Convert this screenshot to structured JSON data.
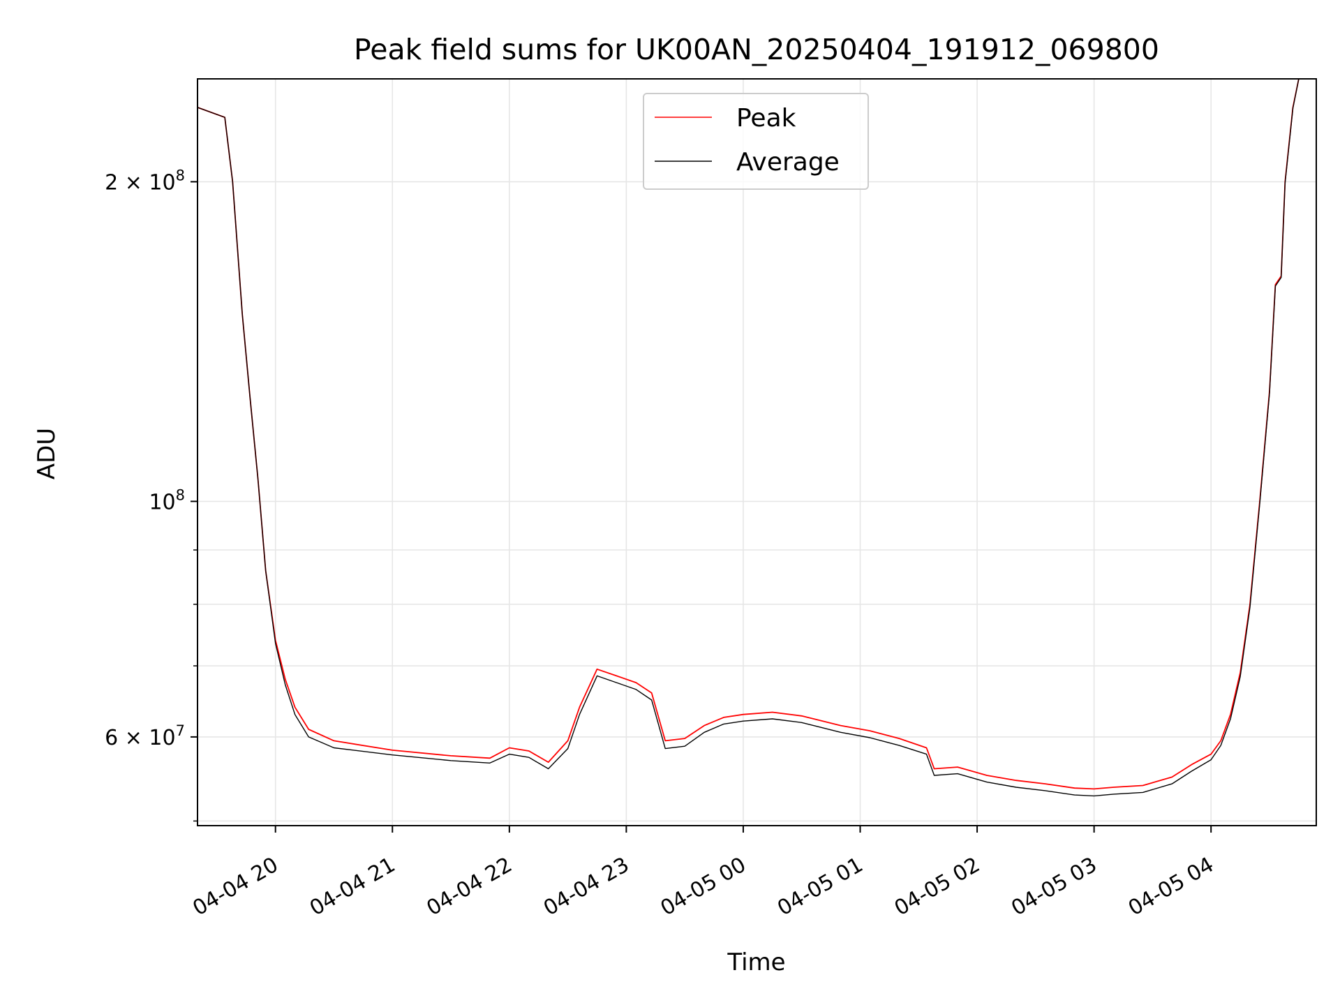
{
  "chart_data": {
    "type": "line",
    "title": "Peak field sums for UK00AN_20250404_191912_069800",
    "xlabel": "Time",
    "ylabel": "ADU",
    "y_scale": "log",
    "ylim": [
      49500000,
      250000000
    ],
    "xlim": [
      "2025-04-04 19:20",
      "2025-04-05 04:54"
    ],
    "grid": true,
    "legend_position": "upper center",
    "x_ticks": [
      {
        "t": "2025-04-04 20:00",
        "label": "04-04 20"
      },
      {
        "t": "2025-04-04 21:00",
        "label": "04-04 21"
      },
      {
        "t": "2025-04-04 22:00",
        "label": "04-04 22"
      },
      {
        "t": "2025-04-04 23:00",
        "label": "04-04 23"
      },
      {
        "t": "2025-04-05 00:00",
        "label": "04-05 00"
      },
      {
        "t": "2025-04-05 01:00",
        "label": "04-05 01"
      },
      {
        "t": "2025-04-05 02:00",
        "label": "04-05 02"
      },
      {
        "t": "2025-04-05 03:00",
        "label": "04-05 03"
      },
      {
        "t": "2025-04-05 04:00",
        "label": "04-05 04"
      }
    ],
    "y_major_ticks": [
      {
        "value": 60000000,
        "mant": "6",
        "exp": "7"
      },
      {
        "value": 100000000,
        "mant": "",
        "exp": "8"
      },
      {
        "value": 200000000,
        "mant": "2",
        "exp": "8"
      }
    ],
    "y_minor_ticks": [
      50000000,
      70000000,
      80000000,
      90000000
    ],
    "series": [
      {
        "name": "Peak",
        "color": "#ff0000",
        "points": [
          [
            "2025-04-04 19:20",
            235000000
          ],
          [
            "2025-04-04 19:34",
            230000000
          ],
          [
            "2025-04-04 19:38",
            200000000
          ],
          [
            "2025-04-04 19:43",
            150000000
          ],
          [
            "2025-04-04 19:47",
            125000000
          ],
          [
            "2025-04-04 19:51",
            105000000
          ],
          [
            "2025-04-04 19:55",
            86000000
          ],
          [
            "2025-04-04 20:00",
            74000000
          ],
          [
            "2025-04-04 20:05",
            68000000
          ],
          [
            "2025-04-04 20:10",
            64000000
          ],
          [
            "2025-04-04 20:17",
            61000000
          ],
          [
            "2025-04-04 20:30",
            59500000
          ],
          [
            "2025-04-04 21:00",
            58300000
          ],
          [
            "2025-04-04 21:30",
            57600000
          ],
          [
            "2025-04-04 21:50",
            57300000
          ],
          [
            "2025-04-04 22:00",
            58600000
          ],
          [
            "2025-04-04 22:10",
            58200000
          ],
          [
            "2025-04-04 22:20",
            56800000
          ],
          [
            "2025-04-04 22:30",
            59500000
          ],
          [
            "2025-04-04 22:36",
            64000000
          ],
          [
            "2025-04-04 22:45",
            69500000
          ],
          [
            "2025-04-04 22:55",
            68500000
          ],
          [
            "2025-04-04 23:05",
            67500000
          ],
          [
            "2025-04-04 23:13",
            66000000
          ],
          [
            "2025-04-04 23:20",
            59500000
          ],
          [
            "2025-04-04 23:30",
            59800000
          ],
          [
            "2025-04-04 23:40",
            61500000
          ],
          [
            "2025-04-04 23:50",
            62600000
          ],
          [
            "2025-04-05 00:00",
            63000000
          ],
          [
            "2025-04-05 00:15",
            63300000
          ],
          [
            "2025-04-05 00:30",
            62800000
          ],
          [
            "2025-04-05 00:50",
            61500000
          ],
          [
            "2025-04-05 01:05",
            60800000
          ],
          [
            "2025-04-05 01:20",
            59800000
          ],
          [
            "2025-04-05 01:34",
            58600000
          ],
          [
            "2025-04-05 01:38",
            56000000
          ],
          [
            "2025-04-05 01:50",
            56200000
          ],
          [
            "2025-04-05 02:05",
            55200000
          ],
          [
            "2025-04-05 02:20",
            54600000
          ],
          [
            "2025-04-05 02:35",
            54200000
          ],
          [
            "2025-04-05 02:50",
            53700000
          ],
          [
            "2025-04-05 03:00",
            53600000
          ],
          [
            "2025-04-05 03:10",
            53800000
          ],
          [
            "2025-04-05 03:25",
            54000000
          ],
          [
            "2025-04-05 03:40",
            55000000
          ],
          [
            "2025-04-05 03:50",
            56500000
          ],
          [
            "2025-04-05 04:00",
            57800000
          ],
          [
            "2025-04-05 04:05",
            59500000
          ],
          [
            "2025-04-05 04:10",
            63000000
          ],
          [
            "2025-04-05 04:15",
            69000000
          ],
          [
            "2025-04-05 04:20",
            80000000
          ],
          [
            "2025-04-05 04:25",
            100000000
          ],
          [
            "2025-04-05 04:30",
            127000000
          ],
          [
            "2025-04-05 04:33",
            160000000
          ],
          [
            "2025-04-05 04:36",
            163000000
          ],
          [
            "2025-04-05 04:38",
            200000000
          ],
          [
            "2025-04-05 04:42",
            235000000
          ],
          [
            "2025-04-05 04:45",
            250000000
          ]
        ]
      },
      {
        "name": "Average",
        "color": "#000000",
        "points": [
          [
            "2025-04-04 19:20",
            235000000
          ],
          [
            "2025-04-04 19:34",
            230000000
          ],
          [
            "2025-04-04 19:38",
            200000000
          ],
          [
            "2025-04-04 19:43",
            150000000
          ],
          [
            "2025-04-04 19:47",
            125000000
          ],
          [
            "2025-04-04 19:51",
            105000000
          ],
          [
            "2025-04-04 19:55",
            86000000
          ],
          [
            "2025-04-04 20:00",
            73500000
          ],
          [
            "2025-04-04 20:05",
            67200000
          ],
          [
            "2025-04-04 20:10",
            63000000
          ],
          [
            "2025-04-04 20:17",
            60000000
          ],
          [
            "2025-04-04 20:30",
            58600000
          ],
          [
            "2025-04-04 21:00",
            57700000
          ],
          [
            "2025-04-04 21:30",
            57000000
          ],
          [
            "2025-04-04 21:50",
            56700000
          ],
          [
            "2025-04-04 22:00",
            57800000
          ],
          [
            "2025-04-04 22:10",
            57400000
          ],
          [
            "2025-04-04 22:20",
            56000000
          ],
          [
            "2025-04-04 22:30",
            58500000
          ],
          [
            "2025-04-04 22:36",
            63000000
          ],
          [
            "2025-04-04 22:45",
            68500000
          ],
          [
            "2025-04-04 22:55",
            67500000
          ],
          [
            "2025-04-04 23:05",
            66500000
          ],
          [
            "2025-04-04 23:13",
            65000000
          ],
          [
            "2025-04-04 23:20",
            58500000
          ],
          [
            "2025-04-04 23:30",
            58800000
          ],
          [
            "2025-04-04 23:40",
            60600000
          ],
          [
            "2025-04-04 23:50",
            61700000
          ],
          [
            "2025-04-05 00:00",
            62100000
          ],
          [
            "2025-04-05 00:15",
            62400000
          ],
          [
            "2025-04-05 00:30",
            61900000
          ],
          [
            "2025-04-05 00:50",
            60600000
          ],
          [
            "2025-04-05 01:05",
            59900000
          ],
          [
            "2025-04-05 01:20",
            58900000
          ],
          [
            "2025-04-05 01:34",
            57800000
          ],
          [
            "2025-04-05 01:38",
            55200000
          ],
          [
            "2025-04-05 01:50",
            55400000
          ],
          [
            "2025-04-05 02:05",
            54400000
          ],
          [
            "2025-04-05 02:20",
            53800000
          ],
          [
            "2025-04-05 02:35",
            53400000
          ],
          [
            "2025-04-05 02:50",
            52900000
          ],
          [
            "2025-04-05 03:00",
            52800000
          ],
          [
            "2025-04-05 03:10",
            53000000
          ],
          [
            "2025-04-05 03:25",
            53200000
          ],
          [
            "2025-04-05 03:40",
            54200000
          ],
          [
            "2025-04-05 03:50",
            55700000
          ],
          [
            "2025-04-05 04:00",
            57100000
          ],
          [
            "2025-04-05 04:05",
            58900000
          ],
          [
            "2025-04-05 04:10",
            62400000
          ],
          [
            "2025-04-05 04:15",
            68400000
          ],
          [
            "2025-04-05 04:20",
            79500000
          ],
          [
            "2025-04-05 04:25",
            99500000
          ],
          [
            "2025-04-05 04:30",
            126500000
          ],
          [
            "2025-04-05 04:33",
            159500000
          ],
          [
            "2025-04-05 04:36",
            162500000
          ],
          [
            "2025-04-05 04:38",
            199500000
          ],
          [
            "2025-04-05 04:42",
            234500000
          ],
          [
            "2025-04-05 04:45",
            250000000
          ]
        ]
      }
    ]
  }
}
